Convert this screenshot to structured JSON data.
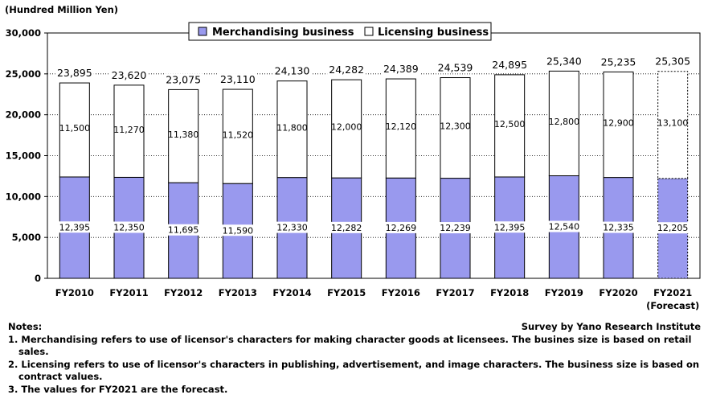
{
  "chart_data": {
    "type": "bar",
    "stacked": true,
    "unit_label": "(Hundred Million Yen)",
    "categories": [
      "FY2010",
      "FY2011",
      "FY2012",
      "FY2013",
      "FY2014",
      "FY2015",
      "FY2016",
      "FY2017",
      "FY2018",
      "FY2019",
      "FY2020",
      "FY2021"
    ],
    "forecast_label": "(Forecast)",
    "series": [
      {
        "name": "Merchandising business",
        "color": "#9999ee",
        "values": [
          12395,
          12350,
          11695,
          11590,
          12330,
          12282,
          12269,
          12239,
          12395,
          12540,
          12335,
          12205
        ]
      },
      {
        "name": "Licensing business",
        "color": "#ffffff",
        "values": [
          11500,
          11270,
          11380,
          11520,
          11800,
          12000,
          12120,
          12300,
          12500,
          12800,
          12900,
          13100
        ]
      }
    ],
    "totals": [
      23895,
      23620,
      23075,
      23110,
      24130,
      24282,
      24389,
      24539,
      24895,
      25340,
      25235,
      25305
    ],
    "yticks": [
      0,
      5000,
      10000,
      15000,
      20000,
      25000,
      30000
    ],
    "ylim": [
      0,
      30000
    ],
    "legend_position": "top-center",
    "forecast_index": 11
  },
  "notes": {
    "heading": "Notes:",
    "source": "Survey by Yano Research Institute",
    "items": [
      "1. Merchandising refers to use of licensor's characters for making character goods at licensees. The busines size is based on retail sales.",
      "2. Licensing refers to use of licensor's characters in publishing, advertisement, and image characters. The business size is based on contract values.",
      "3. The values for FY2021 are the forecast."
    ]
  }
}
